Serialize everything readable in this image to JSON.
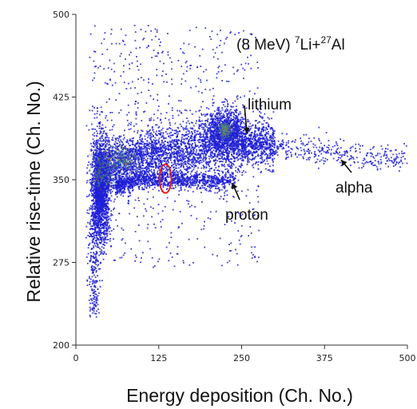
{
  "chart_data": {
    "type": "scatter",
    "title_parts": {
      "prefix": "(8 MeV) ",
      "sup1": "7",
      "mid": "Li+",
      "sup2": "27",
      "suffix": "Al"
    },
    "xlabel": "Energy deposition   (Ch. No.)",
    "ylabel": "Relative rise-time   (Ch. No.)",
    "xlim": [
      0,
      500
    ],
    "ylim": [
      200,
      500
    ],
    "xticks": [
      "0",
      "125",
      "250",
      "375",
      "500"
    ],
    "yticks": [
      "200",
      "275",
      "350",
      "425",
      "500"
    ],
    "grid": false,
    "point_color": "#1f1fd6",
    "dense_core_color": "#3aa060",
    "marker_circle_color": "#e02020",
    "clusters": [
      {
        "kind": "ridge",
        "x": [
          30,
          60,
          100,
          160,
          210,
          250,
          300
        ],
        "y": [
          352,
          365,
          372,
          376,
          380,
          383,
          385
        ],
        "spread_y": 12,
        "count": 3500
      },
      {
        "kind": "blob",
        "center": [
          225,
          395
        ],
        "spread": [
          14,
          10
        ],
        "count": 900
      },
      {
        "kind": "blob",
        "center": [
          37,
          340
        ],
        "spread": [
          7,
          24
        ],
        "count": 1700
      },
      {
        "kind": "ridge",
        "x": [
          60,
          100,
          150,
          200,
          240
        ],
        "y": [
          344,
          350,
          350,
          349,
          348
        ],
        "spread_y": 4,
        "count": 1100
      },
      {
        "kind": "tail",
        "x": [
          250,
          330,
          420,
          500
        ],
        "y": [
          383,
          378,
          372,
          368
        ],
        "spread_y": 6,
        "count": 500
      },
      {
        "kind": "stem",
        "center_x": 27,
        "y_range": [
          225,
          320
        ],
        "spread_x": 4,
        "count": 220
      },
      {
        "kind": "scatter",
        "x_range": [
          15,
          280
        ],
        "y_range": [
          270,
          490
        ],
        "count": 700
      }
    ],
    "annotations": [
      {
        "label": "lithium",
        "point": [
          258,
          392
        ]
      },
      {
        "label": "alpha",
        "point": [
          400,
          368
        ]
      },
      {
        "label": "proton",
        "point": [
          236,
          347
        ]
      }
    ],
    "highlight": {
      "center": [
        135,
        351
      ],
      "radius_x": 9,
      "radius_y": 13
    }
  }
}
